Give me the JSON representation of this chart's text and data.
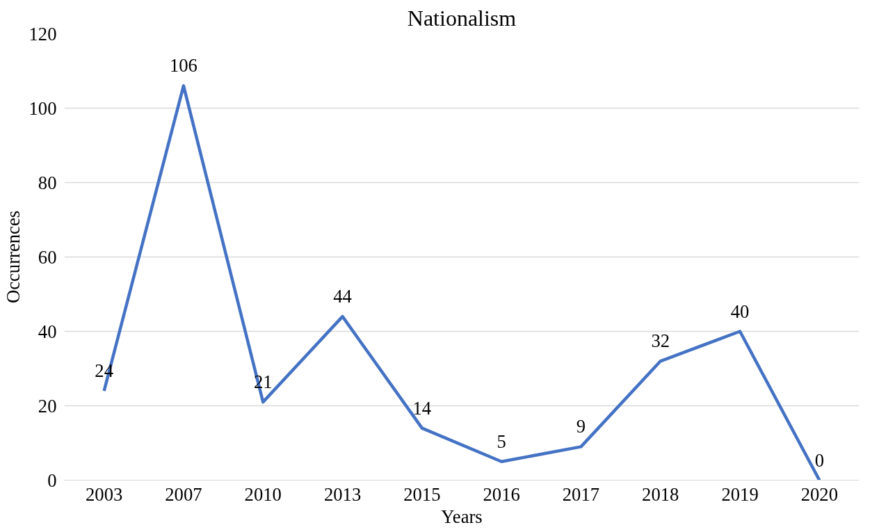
{
  "chart_data": {
    "type": "line",
    "title": "Nationalism",
    "xlabel": "Years",
    "ylabel": "Occurrences",
    "categories": [
      "2003",
      "2007",
      "2010",
      "2013",
      "2015",
      "2016",
      "2017",
      "2018",
      "2019",
      "2020"
    ],
    "series": [
      {
        "color": "#4472c4",
        "values": [
          24,
          106,
          21,
          44,
          14,
          5,
          9,
          32,
          40,
          0
        ]
      }
    ],
    "ylim": [
      0,
      120
    ],
    "yticks": [
      0,
      20,
      40,
      60,
      80,
      100,
      120
    ],
    "grid": "y",
    "data_labels": true,
    "marker": "none",
    "line_style": "solid"
  }
}
